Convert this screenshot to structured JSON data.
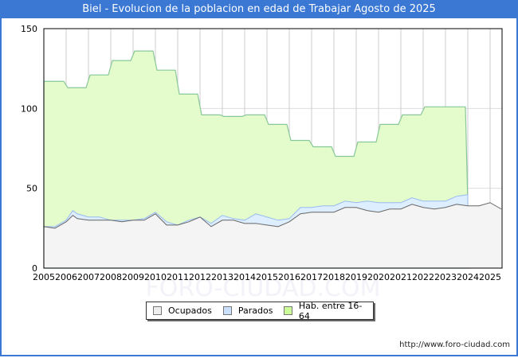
{
  "header": {
    "title": "Biel - Evolucion de la poblacion en edad de Trabajar Agosto de 2025"
  },
  "legend": {
    "items": [
      {
        "label": "Ocupados",
        "color": "#f0f0f0"
      },
      {
        "label": "Parados",
        "color": "#cce0ff"
      },
      {
        "label": "Hab. entre 16-64",
        "color": "#ccff99"
      }
    ]
  },
  "footer": {
    "url": "http://www.foro-ciudad.com"
  },
  "watermark": "FORO-CIUDAD.COM",
  "chart_data": {
    "type": "area",
    "title": "Biel - Evolucion de la poblacion en edad de Trabajar Agosto de 2025",
    "xlabel": "",
    "ylabel": "",
    "ylim": [
      0,
      150
    ],
    "xlim": [
      2005,
      2025.6
    ],
    "grid": true,
    "legend_position": "bottom",
    "y_ticks": [
      0,
      50,
      100,
      150
    ],
    "x_ticks": [
      "2005",
      "2006",
      "2007",
      "2008",
      "2009",
      "2010",
      "2011",
      "2012",
      "2013",
      "2014",
      "2015",
      "2016",
      "2017",
      "2018",
      "2019",
      "2020",
      "2021",
      "2022",
      "2023",
      "2024",
      "2025"
    ],
    "series": [
      {
        "name": "Hab. entre 16-64",
        "color": "#e4fccc",
        "x": [
          2005,
          2006,
          2007,
          2008,
          2009,
          2010,
          2011,
          2012,
          2013,
          2014,
          2015,
          2016,
          2017,
          2018,
          2019,
          2020,
          2021,
          2022,
          2023
        ],
        "values": [
          117,
          113,
          121,
          130,
          136,
          124,
          109,
          96,
          95,
          96,
          90,
          80,
          76,
          70,
          79,
          90,
          96,
          101,
          101
        ]
      },
      {
        "name": "Parados",
        "color": "#ddeeff",
        "x": [
          2005,
          2005.5,
          2006,
          2006.3,
          2006.5,
          2007,
          2007.5,
          2008,
          2008.5,
          2009,
          2009.5,
          2010,
          2010.5,
          2011,
          2011.5,
          2012,
          2012.5,
          2013,
          2013.5,
          2014,
          2014.5,
          2015,
          2015.5,
          2016,
          2016.5,
          2017,
          2017.5,
          2018,
          2018.5,
          2019,
          2019.5,
          2020,
          2020.5,
          2021,
          2021.5,
          2022,
          2022.5,
          2023,
          2023.5,
          2024
        ],
        "values": [
          26,
          26,
          30,
          36,
          34,
          32,
          32,
          30,
          30,
          30,
          31,
          35,
          29,
          27,
          30,
          32,
          28,
          33,
          31,
          30,
          34,
          32,
          30,
          31,
          38,
          38,
          39,
          39,
          42,
          41,
          42,
          41,
          41,
          41,
          44,
          42,
          42,
          42,
          45,
          46
        ]
      },
      {
        "name": "Ocupados",
        "color": "#f4f4f4",
        "x": [
          2005,
          2005.5,
          2006,
          2006.3,
          2006.5,
          2007,
          2007.5,
          2008,
          2008.5,
          2009,
          2009.5,
          2010,
          2010.5,
          2011,
          2011.5,
          2012,
          2012.5,
          2013,
          2013.5,
          2014,
          2014.5,
          2015,
          2015.5,
          2016,
          2016.5,
          2017,
          2017.5,
          2018,
          2018.5,
          2019,
          2019.5,
          2020,
          2020.5,
          2021,
          2021.5,
          2022,
          2022.5,
          2023,
          2023.5,
          2024,
          2024.5,
          2025,
          2025.5
        ],
        "values": [
          26,
          25,
          29,
          33,
          31,
          30,
          30,
          30,
          29,
          30,
          30,
          34,
          27,
          27,
          29,
          32,
          26,
          30,
          30,
          28,
          28,
          27,
          26,
          29,
          34,
          35,
          35,
          35,
          38,
          38,
          36,
          35,
          37,
          37,
          40,
          38,
          37,
          38,
          40,
          39,
          39,
          41,
          37
        ]
      }
    ]
  }
}
